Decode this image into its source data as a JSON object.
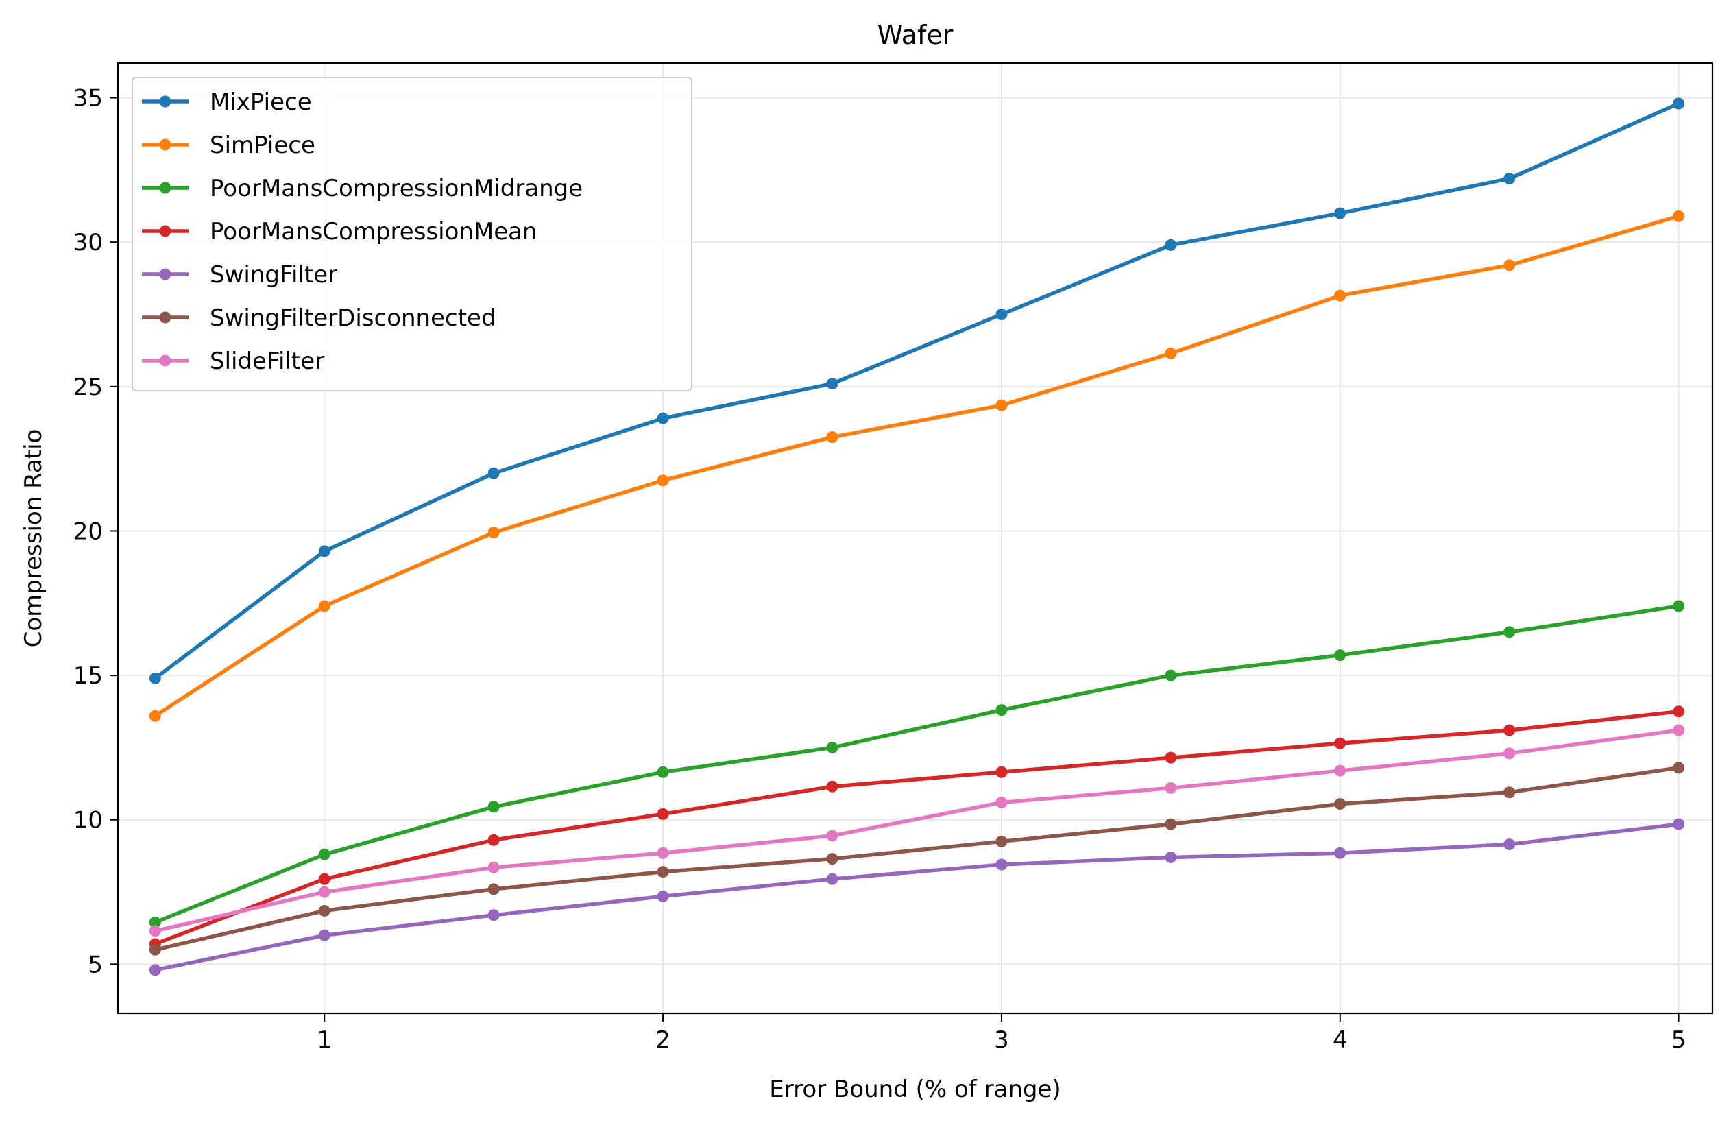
{
  "chart_data": {
    "type": "line",
    "title": "Wafer",
    "xlabel": "Error Bound (% of range)",
    "ylabel": "Compression Ratio",
    "x": [
      0.5,
      1.0,
      1.5,
      2.0,
      2.5,
      3.0,
      3.5,
      4.0,
      4.5,
      5.0
    ],
    "xlim": [
      0.39,
      5.1
    ],
    "ylim": [
      3.3,
      36.2
    ],
    "xticks": [
      1,
      2,
      3,
      4,
      5
    ],
    "yticks": [
      5,
      10,
      15,
      20,
      25,
      30,
      35
    ],
    "grid": true,
    "legend_position": "top-left",
    "series": [
      {
        "name": "MixPiece",
        "color": "#1f77b4",
        "values": [
          14.9,
          19.3,
          22.0,
          23.9,
          25.1,
          27.5,
          29.9,
          31.0,
          32.2,
          34.8
        ]
      },
      {
        "name": "SimPiece",
        "color": "#ff7f0e",
        "values": [
          13.6,
          17.4,
          19.95,
          21.75,
          23.25,
          24.35,
          26.15,
          28.15,
          29.2,
          30.9
        ]
      },
      {
        "name": "PoorMansCompressionMidrange",
        "color": "#2ca02c",
        "values": [
          6.45,
          8.8,
          10.45,
          11.65,
          12.5,
          13.8,
          15.0,
          15.7,
          16.5,
          17.4
        ]
      },
      {
        "name": "PoorMansCompressionMean",
        "color": "#d62728",
        "values": [
          5.7,
          7.95,
          9.3,
          10.2,
          11.15,
          11.65,
          12.15,
          12.65,
          13.1,
          13.75
        ]
      },
      {
        "name": "SwingFilter",
        "color": "#9467bd",
        "values": [
          4.8,
          6.0,
          6.7,
          7.35,
          7.95,
          8.45,
          8.7,
          8.85,
          9.15,
          9.85
        ]
      },
      {
        "name": "SwingFilterDisconnected",
        "color": "#8c564b",
        "values": [
          5.5,
          6.85,
          7.6,
          8.2,
          8.65,
          9.25,
          9.85,
          10.55,
          10.95,
          11.8
        ]
      },
      {
        "name": "SlideFilter",
        "color": "#e377c2",
        "values": [
          6.15,
          7.5,
          8.35,
          8.85,
          9.45,
          10.6,
          11.1,
          11.7,
          12.3,
          13.1
        ]
      }
    ]
  }
}
